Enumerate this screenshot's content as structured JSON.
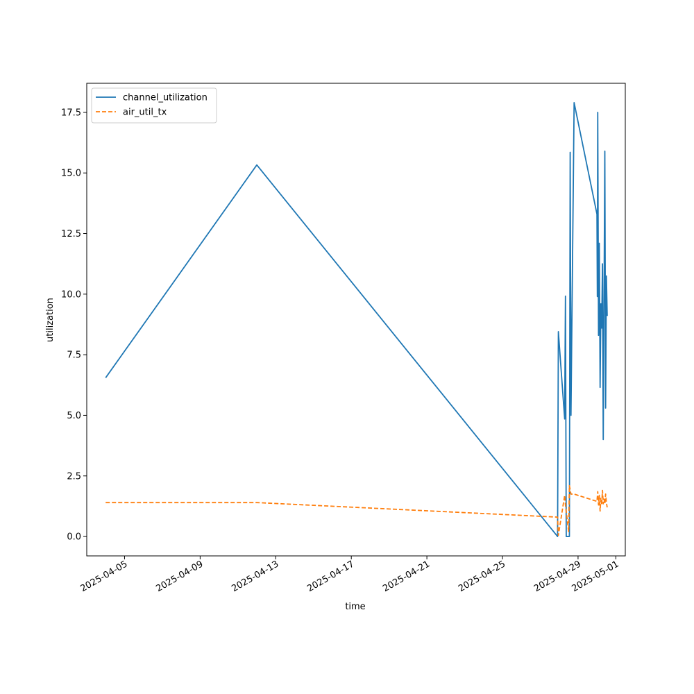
{
  "chart_data": {
    "type": "line",
    "title": "",
    "xlabel": "time",
    "ylabel": "utilization",
    "x_axis": {
      "type": "date",
      "range": [
        "2025-04-03T00:00",
        "2025-05-01T12:00"
      ],
      "ticks": [
        "2025-04-05",
        "2025-04-09",
        "2025-04-13",
        "2025-04-17",
        "2025-04-21",
        "2025-04-25",
        "2025-04-29",
        "2025-05-01"
      ]
    },
    "y_axis": {
      "range": [
        -0.8,
        18.7
      ],
      "ticks": [
        0.0,
        2.5,
        5.0,
        7.5,
        10.0,
        12.5,
        15.0,
        17.5
      ],
      "tick_labels": [
        "0.0",
        "2.5",
        "5.0",
        "7.5",
        "10.0",
        "12.5",
        "15.0",
        "17.5"
      ]
    },
    "grid": false,
    "legend": {
      "position": "upper-left"
    },
    "series": [
      {
        "name": "channel_utilization",
        "color": "#1f77b4",
        "style": "solid",
        "points": [
          [
            "2025-04-04T00:00",
            6.55
          ],
          [
            "2025-04-12T00:00",
            15.33
          ],
          [
            "2025-04-27T22:00",
            0.0
          ],
          [
            "2025-04-27T23:00",
            8.45
          ],
          [
            "2025-04-28T07:00",
            4.85
          ],
          [
            "2025-04-28T08:00",
            9.92
          ],
          [
            "2025-04-28T09:00",
            0.0
          ],
          [
            "2025-04-28T12:00",
            0.0
          ],
          [
            "2025-04-28T13:00",
            0.0
          ],
          [
            "2025-04-28T14:00",
            15.85
          ],
          [
            "2025-04-28T15:00",
            5.0
          ],
          [
            "2025-04-28T19:00",
            17.9
          ],
          [
            "2025-04-30T00:00",
            13.3
          ],
          [
            "2025-04-30T00:30",
            9.9
          ],
          [
            "2025-04-30T01:00",
            17.5
          ],
          [
            "2025-04-30T02:00",
            8.3
          ],
          [
            "2025-04-30T03:00",
            12.1
          ],
          [
            "2025-04-30T04:00",
            6.15
          ],
          [
            "2025-04-30T05:00",
            9.6
          ],
          [
            "2025-04-30T06:00",
            8.6
          ],
          [
            "2025-04-30T07:00",
            11.25
          ],
          [
            "2025-04-30T08:00",
            4.0
          ],
          [
            "2025-04-30T09:00",
            9.8
          ],
          [
            "2025-04-30T10:00",
            15.9
          ],
          [
            "2025-04-30T11:00",
            5.3
          ],
          [
            "2025-04-30T12:00",
            10.75
          ],
          [
            "2025-04-30T13:00",
            9.1
          ]
        ]
      },
      {
        "name": "air_util_tx",
        "color": "#ff7f0e",
        "style": "dashed",
        "points": [
          [
            "2025-04-04T00:00",
            1.4
          ],
          [
            "2025-04-12T00:00",
            1.4
          ],
          [
            "2025-04-27T22:00",
            0.8
          ],
          [
            "2025-04-27T23:00",
            0.05
          ],
          [
            "2025-04-28T07:00",
            1.7
          ],
          [
            "2025-04-28T08:00",
            1.3
          ],
          [
            "2025-04-28T12:00",
            0.2
          ],
          [
            "2025-04-28T13:00",
            2.1
          ],
          [
            "2025-04-28T15:00",
            1.75
          ],
          [
            "2025-04-28T19:00",
            1.75
          ],
          [
            "2025-04-30T00:00",
            1.45
          ],
          [
            "2025-04-30T01:00",
            1.85
          ],
          [
            "2025-04-30T02:00",
            1.3
          ],
          [
            "2025-04-30T03:00",
            1.7
          ],
          [
            "2025-04-30T04:00",
            1.05
          ],
          [
            "2025-04-30T05:00",
            1.6
          ],
          [
            "2025-04-30T06:00",
            1.3
          ],
          [
            "2025-04-30T07:00",
            1.9
          ],
          [
            "2025-04-30T08:00",
            1.35
          ],
          [
            "2025-04-30T09:00",
            1.55
          ],
          [
            "2025-04-30T10:00",
            1.35
          ],
          [
            "2025-04-30T11:00",
            1.75
          ],
          [
            "2025-04-30T12:00",
            1.4
          ],
          [
            "2025-04-30T13:00",
            1.2
          ]
        ]
      }
    ]
  }
}
